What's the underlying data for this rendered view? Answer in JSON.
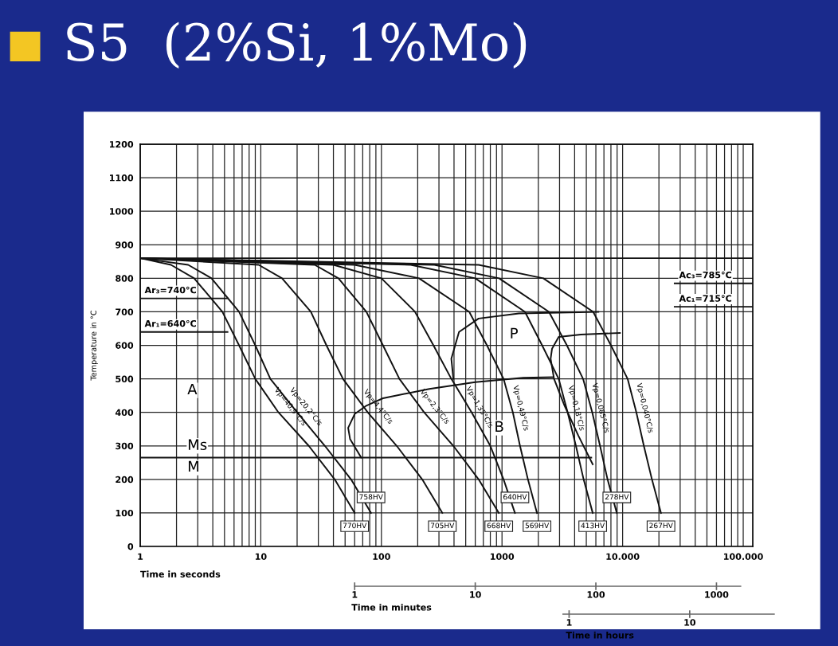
{
  "chart_data": [
    {
      "type": "line",
      "title": "S5  (2%Si, 1%Mo)",
      "xlabel": "Time in seconds",
      "ylabel": "Temperature in °C",
      "log": "x",
      "xlim": [
        1,
        120000
      ],
      "xticks": [
        1,
        10,
        100,
        1000,
        {
          "value": 10000,
          "label": "10.000"
        },
        {
          "value": 100000,
          "label": "100.000"
        }
      ],
      "ylim": [
        0,
        1200
      ],
      "yticks": [
        0,
        100,
        200,
        300,
        400,
        500,
        600,
        700,
        800,
        900,
        1000,
        1100,
        1200
      ],
      "grid": true,
      "marker": "none",
      "line_style": "solid",
      "series": [
        {
          "name": "Vp=40,9°C/s",
          "color": "#111111",
          "x": [
            1,
            1.8,
            2.8,
            4.8,
            6.6,
            9,
            14,
            25,
            41,
            60
          ],
          "values": [
            860,
            840,
            800,
            700,
            600,
            500,
            400,
            300,
            200,
            100
          ]
        },
        {
          "name": "Vp=20,2°C/s",
          "color": "#111111",
          "x": [
            1,
            2.5,
            3.9,
            6.6,
            9,
            12,
            20,
            34,
            56,
            82
          ],
          "values": [
            860,
            840,
            800,
            700,
            600,
            500,
            400,
            300,
            200,
            100
          ]
        },
        {
          "name": "Vp=4,4°C/s",
          "color": "#111111",
          "x": [
            1,
            9.6,
            15,
            26,
            35,
            48,
            77,
            134,
            218,
            320
          ],
          "values": [
            860,
            840,
            800,
            700,
            600,
            500,
            400,
            300,
            200,
            100
          ]
        },
        {
          "name": "Vp=2,3°C/s",
          "color": "#111111",
          "x": [
            1,
            28,
            44,
            75,
            103,
            141,
            226,
            395,
            640,
            940
          ],
          "values": [
            860,
            840,
            800,
            700,
            600,
            500,
            400,
            300,
            200,
            100
          ]
        },
        {
          "name": "Vp=1,35°C/s",
          "color": "#111111",
          "x": [
            1,
            40,
            100,
            190,
            270,
            380,
            560,
            800,
            1030,
            1280
          ],
          "values": [
            860,
            840,
            800,
            700,
            600,
            500,
            400,
            300,
            200,
            100
          ]
        },
        {
          "name": "Vp=0,49°C/s",
          "color": "#111111",
          "x": [
            1,
            60,
            205,
            535,
            750,
            1030,
            1230,
            1410,
            1640,
            1950
          ],
          "values": [
            860,
            840,
            800,
            700,
            600,
            500,
            400,
            300,
            200,
            100
          ]
        },
        {
          "name": "Vp=0,18°C/s",
          "color": "#111111",
          "x": [
            1,
            175,
            600,
            1550,
            2150,
            2950,
            3500,
            4100,
            4750,
            5650
          ],
          "values": [
            860,
            840,
            800,
            700,
            600,
            500,
            400,
            300,
            200,
            100
          ]
        },
        {
          "name": "Vp=0,085°C/s",
          "color": "#111111",
          "x": [
            1,
            275,
            945,
            2450,
            3450,
            4700,
            5600,
            6500,
            7500,
            8950
          ],
          "values": [
            860,
            840,
            800,
            700,
            600,
            500,
            400,
            300,
            200,
            100
          ]
        },
        {
          "name": "Vp=0,040°C/s",
          "color": "#111111",
          "x": [
            1,
            640,
            2200,
            5700,
            8000,
            11000,
            13000,
            15000,
            17500,
            20800
          ],
          "values": [
            860,
            840,
            800,
            700,
            600,
            500,
            400,
            300,
            200,
            100
          ]
        },
        {
          "color": "#111111",
          "x": [
            395,
            380,
            440,
            640,
            1380,
            6300
          ],
          "values": [
            500,
            560,
            640,
            680,
            695,
            700
          ]
        },
        {
          "color": "#111111",
          "x": [
            9500,
            4500,
            2950,
            2600,
            2530,
            2700,
            3300,
            4300,
            5650
          ],
          "values": [
            637,
            632,
            625,
            590,
            560,
            500,
            420,
            330,
            245
          ]
        },
        {
          "color": "#111111",
          "x": [
            68,
            55,
            53,
            60,
            75,
            103,
            250,
            600,
            1500,
            2650
          ],
          "values": [
            265,
            320,
            354,
            395,
            420,
            442,
            470,
            490,
            503,
            505
          ]
        },
        {
          "color": "#111111",
          "x": [
            1,
            5500
          ],
          "values": [
            265,
            265
          ]
        },
        {
          "color": "#111111",
          "x": [
            1,
            120000
          ],
          "values": [
            860,
            860
          ]
        },
        {
          "name": "Ar₃=740°C",
          "color": "#111111",
          "x": [
            1,
            5.3
          ],
          "values": [
            740,
            740
          ]
        },
        {
          "name": "Ar₁=640°C",
          "color": "#111111",
          "x": [
            1,
            5.3
          ],
          "values": [
            640,
            640
          ]
        },
        {
          "name": "Ac₃=785°C",
          "color": "#111111",
          "x": [
            27000,
            120000
          ],
          "values": [
            785,
            785
          ]
        },
        {
          "name": "Ac₁=715°C",
          "color": "#111111",
          "x": [
            27000,
            120000
          ],
          "values": [
            715,
            715
          ]
        }
      ],
      "annotations": [
        "A",
        "P",
        "B",
        "Ms",
        "M",
        {
          "text": "770HV",
          "x": 60,
          "y": 100
        },
        {
          "text": "758HV",
          "x": 82,
          "y": 100
        },
        {
          "text": "705HV",
          "x": 320,
          "y": 100
        },
        {
          "text": "668HV",
          "x": 940,
          "y": 100
        },
        {
          "text": "640HV",
          "x": 1280,
          "y": 100
        },
        {
          "text": "569HV",
          "x": 1950,
          "y": 100
        },
        {
          "text": "413HV",
          "x": 5650,
          "y": 100
        },
        {
          "text": "278HV",
          "x": 8950,
          "y": 100
        },
        {
          "text": "267HV",
          "x": 20800,
          "y": 100
        }
      ]
    },
    {
      "type": "other",
      "xlabel": "Time in minutes",
      "annotations": [
        "1",
        "10",
        "100",
        "1000"
      ]
    },
    {
      "type": "other",
      "xlabel": "Time in hours",
      "annotations": [
        "1",
        "10"
      ]
    }
  ]
}
